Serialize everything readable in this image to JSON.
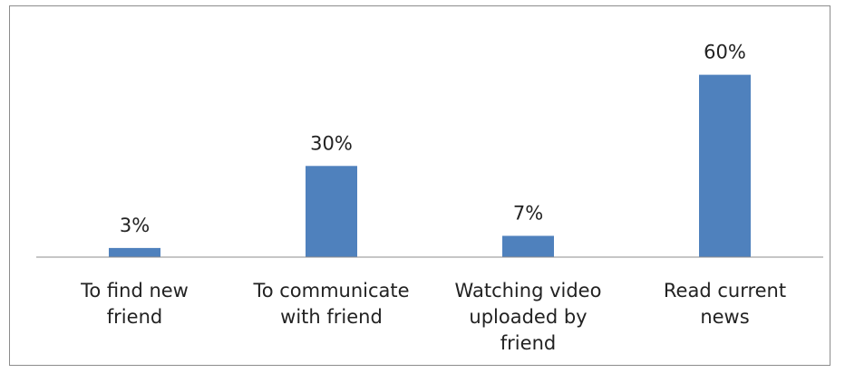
{
  "chart_data": {
    "type": "bar",
    "categories": [
      [
        "To find new",
        "friend"
      ],
      [
        "To communicate",
        "with friend"
      ],
      [
        "Watching video",
        "uploaded by",
        "friend"
      ],
      [
        "Read current",
        "news"
      ]
    ],
    "values": [
      3,
      30,
      7,
      60
    ],
    "data_labels": [
      "3%",
      "30%",
      "7%",
      "60%"
    ],
    "unit": "%",
    "title": "",
    "xlabel": "",
    "ylabel": "",
    "ylim": [
      0,
      70
    ],
    "grid": false,
    "legend": "none",
    "bar_color": "#4f81bd",
    "axis_color": "#8c8c8c"
  }
}
